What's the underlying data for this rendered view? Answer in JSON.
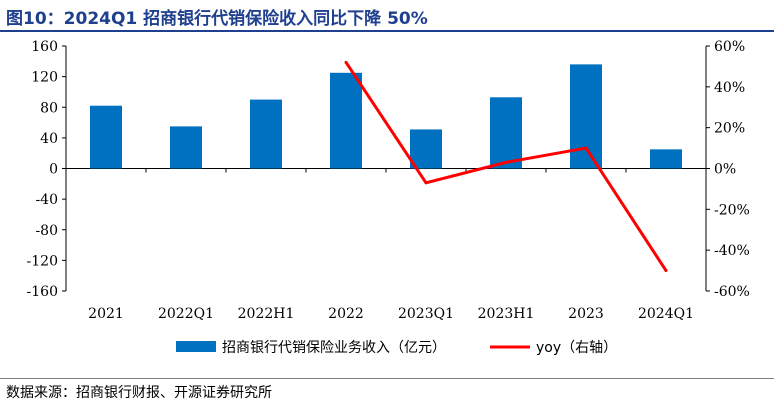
{
  "header": {
    "title": "图10：2024Q1 招商银行代销保险收入同比下降 50%"
  },
  "footer": {
    "source": "数据来源：招商银行财报、开源证券研究所"
  },
  "colors": {
    "bar": "#0070c0",
    "line": "#ff0000",
    "axis": "#000000",
    "title": "#1f3f8f"
  },
  "chart_data": {
    "type": "bar",
    "categories": [
      "2021",
      "2022Q1",
      "2022H1",
      "2022",
      "2023Q1",
      "2023H1",
      "2023",
      "2024Q1"
    ],
    "series": [
      {
        "name": "招商银行代销保险业务收入（亿元）",
        "type": "bar",
        "axis": "left",
        "values": [
          82,
          55,
          90,
          125,
          51,
          93,
          136,
          25
        ]
      },
      {
        "name": "yoy（右轴）",
        "type": "line",
        "axis": "right",
        "values": [
          null,
          null,
          null,
          52,
          -7,
          3,
          10,
          -50
        ]
      }
    ],
    "left_axis": {
      "min": -160,
      "max": 160,
      "ticks": [
        160,
        120,
        80,
        40,
        0,
        -40,
        -80,
        -120,
        -160
      ]
    },
    "right_axis": {
      "min": -60,
      "max": 60,
      "ticks": [
        "60%",
        "40%",
        "20%",
        "0%",
        "-20%",
        "-40%",
        "-60%"
      ]
    },
    "legend_position": "bottom",
    "grid": false
  }
}
